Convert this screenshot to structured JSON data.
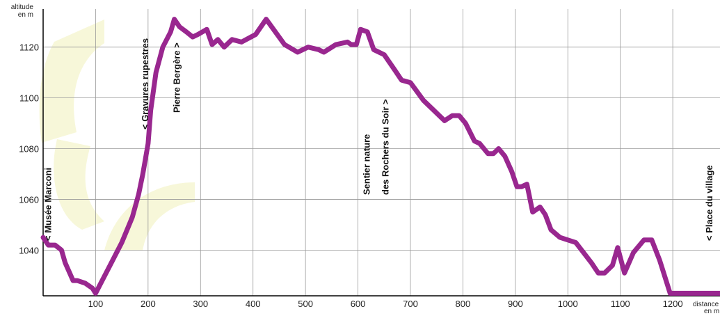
{
  "chart_data": {
    "type": "line",
    "ylabel": "altitude",
    "ylabel_unit": "en m",
    "xlabel": "distance",
    "xlabel_unit": "en m",
    "xlim": [
      0,
      1290
    ],
    "ylim": [
      1022,
      1135
    ],
    "x_ticks": [
      100,
      200,
      300,
      400,
      500,
      600,
      700,
      800,
      900,
      1000,
      1100,
      1200
    ],
    "y_ticks": [
      1040,
      1060,
      1080,
      1100,
      1120
    ],
    "grid": true,
    "line_color": "#99278f",
    "watermark_color": "#f7f7d9",
    "series": [
      {
        "x": [
          0,
          10,
          23,
          35,
          42,
          57,
          65,
          80,
          94,
          100,
          125,
          150,
          170,
          182,
          190,
          200,
          205,
          215,
          228,
          243,
          250,
          260,
          273,
          285,
          295,
          312,
          322,
          333,
          345,
          360,
          378,
          405,
          425,
          460,
          485,
          505,
          525,
          535,
          558,
          580,
          587,
          597,
          605,
          618,
          630,
          650,
          670,
          683,
          700,
          725,
          745,
          765,
          780,
          793,
          805,
          822,
          832,
          848,
          858,
          868,
          880,
          893,
          903,
          912,
          922,
          933,
          947,
          957,
          968,
          985,
          1015,
          1045,
          1058,
          1070,
          1085,
          1095,
          1108,
          1125,
          1145,
          1160,
          1175,
          1195,
          1210,
          1222,
          1235,
          1252,
          1265,
          1290
        ],
        "y": [
          1045,
          1042,
          1042,
          1040,
          1035,
          1028,
          1028,
          1027,
          1025,
          1023,
          1033,
          1043,
          1053,
          1062,
          1070,
          1082,
          1095,
          1110,
          1120,
          1126,
          1131,
          1128,
          1126,
          1124,
          1125,
          1127,
          1121,
          1123,
          1120,
          1123,
          1122,
          1125,
          1131,
          1121,
          1118,
          1120,
          1119,
          1118,
          1121,
          1122,
          1121,
          1121,
          1127,
          1126,
          1119,
          1117,
          1111,
          1107,
          1106,
          1099,
          1095,
          1091,
          1093,
          1093,
          1090,
          1083,
          1082,
          1078,
          1078,
          1080,
          1077,
          1071,
          1065,
          1065,
          1066,
          1055,
          1057,
          1054,
          1048,
          1045,
          1043,
          1035,
          1031,
          1031,
          1034,
          1041,
          1031,
          1039,
          1044,
          1044,
          1036,
          1023,
          1023,
          1023,
          1023,
          1023,
          1023,
          1023
        ]
      }
    ],
    "annotations": [
      {
        "text": "< Musée Marconi",
        "x": 10
      },
      {
        "text": "< Gravures rupestres",
        "x": 195
      },
      {
        "text": "Pierre Bergère >",
        "x": 255
      },
      {
        "text": "Sentier nature",
        "x": 628
      },
      {
        "text": "des Rochers du Soir >",
        "x": 645
      },
      {
        "text": "< Place du village",
        "x": 1270
      }
    ]
  }
}
